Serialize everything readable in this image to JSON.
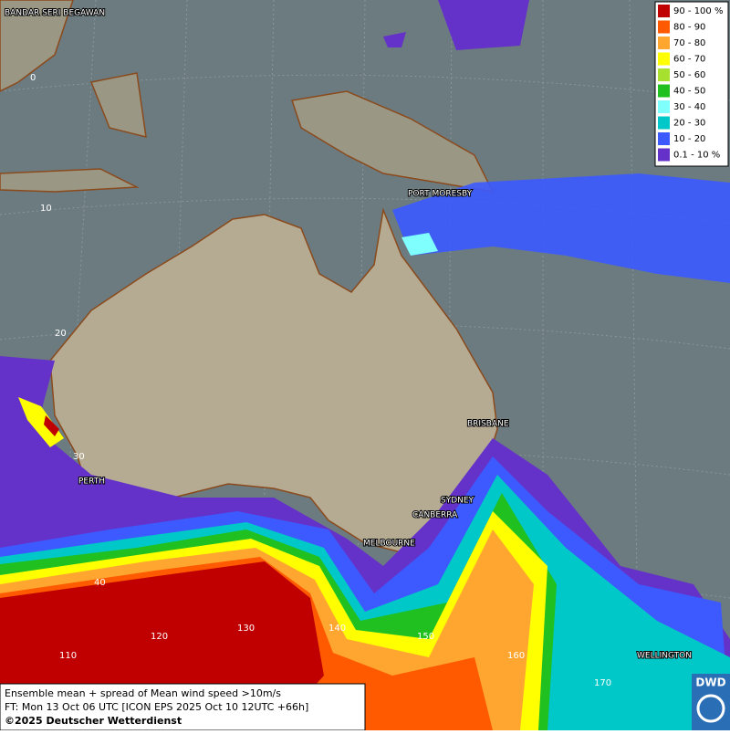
{
  "cities": [
    "BANDAR SERI BEGAWAN",
    "PORT MORESBY",
    "BRISBANE",
    "PERTH",
    "SYDNEY",
    "CANBERRA",
    "MELBOURNE",
    "WELLINGTON"
  ],
  "grid_labels": [
    "0",
    "10",
    "20",
    "30",
    "40",
    "110",
    "120",
    "130",
    "140",
    "150",
    "160",
    "170"
  ],
  "legend": [
    {
      "label": "90 - 100 %",
      "color": "#c00000"
    },
    {
      "label": "80 - 90",
      "color": "#ff5a00"
    },
    {
      "label": "70 - 80",
      "color": "#ffa630"
    },
    {
      "label": "60 - 70",
      "color": "#ffff00"
    },
    {
      "label": "50 - 60",
      "color": "#a8e030"
    },
    {
      "label": "40 - 50",
      "color": "#20c020"
    },
    {
      "label": "30 - 40",
      "color": "#80ffff"
    },
    {
      "label": "20 - 30",
      "color": "#00c8c8"
    },
    {
      "label": "10 - 20",
      "color": "#3c5aff"
    },
    {
      "label": "0.1 - 10 %",
      "color": "#6432c8"
    }
  ],
  "caption": [
    "Ensemble mean + spread of Mean wind speed >10m/s",
    "FT: Mon 13 Oct 06 UTC [ICON EPS 2025 Oct 10 12UTC +66h]",
    "©2025 Deutscher Wetterdienst"
  ],
  "logo": "DWD"
}
